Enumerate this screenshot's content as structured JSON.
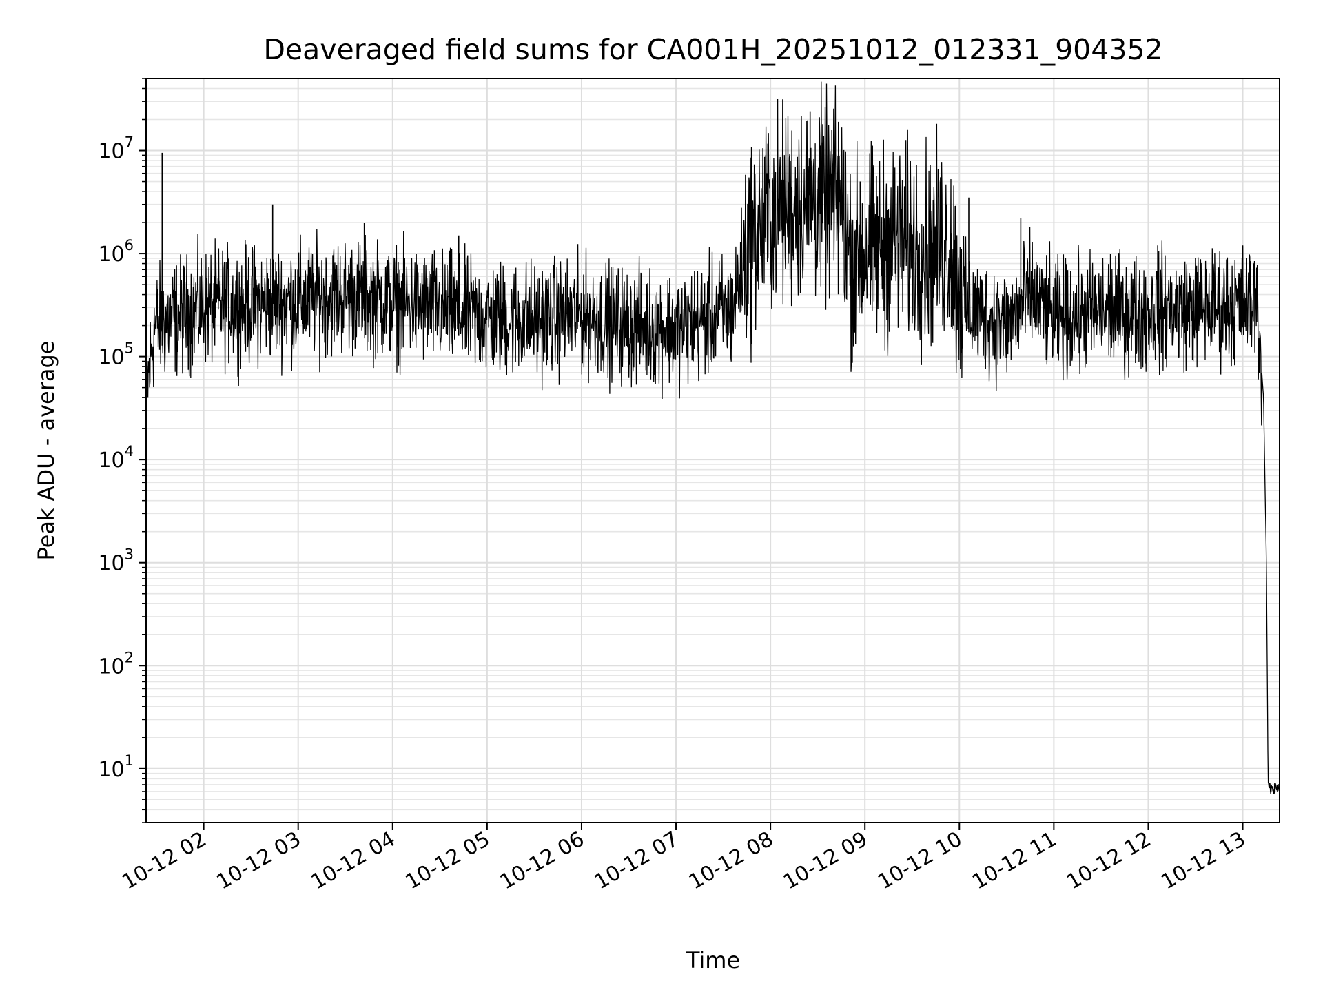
{
  "chart_data": {
    "type": "line",
    "title": "Deaveraged field sums for CA001H_20251012_012331_904352",
    "xlabel": "Time",
    "ylabel": "Peak ADU - average",
    "yscale": "log",
    "ylim": [
      3,
      50000000
    ],
    "xlim_hours": [
      1.39,
      13.39
    ],
    "grid": true,
    "x_ticks": [
      {
        "hour": 2,
        "label": "10-12 02"
      },
      {
        "hour": 3,
        "label": "10-12 03"
      },
      {
        "hour": 4,
        "label": "10-12 04"
      },
      {
        "hour": 5,
        "label": "10-12 05"
      },
      {
        "hour": 6,
        "label": "10-12 06"
      },
      {
        "hour": 7,
        "label": "10-12 07"
      },
      {
        "hour": 8,
        "label": "10-12 08"
      },
      {
        "hour": 9,
        "label": "10-12 09"
      },
      {
        "hour": 10,
        "label": "10-12 10"
      },
      {
        "hour": 11,
        "label": "10-12 11"
      },
      {
        "hour": 12,
        "label": "10-12 12"
      },
      {
        "hour": 13,
        "label": "10-12 13"
      }
    ],
    "y_ticks": [
      {
        "value": 10,
        "base": "10",
        "exp": "1"
      },
      {
        "value": 100,
        "base": "10",
        "exp": "2"
      },
      {
        "value": 1000,
        "base": "10",
        "exp": "3"
      },
      {
        "value": 10000,
        "base": "10",
        "exp": "4"
      },
      {
        "value": 100000,
        "base": "10",
        "exp": "5"
      },
      {
        "value": 1000000,
        "base": "10",
        "exp": "6"
      },
      {
        "value": 10000000,
        "base": "10",
        "exp": "7"
      }
    ],
    "series": [
      {
        "name": "deaveraged field sum",
        "color": "#000000",
        "baseline_profile": [
          {
            "hour": 1.39,
            "value": 40000
          },
          {
            "hour": 1.48,
            "value": 200000
          },
          {
            "hour": 2.0,
            "value": 300000
          },
          {
            "hour": 2.5,
            "value": 320000
          },
          {
            "hour": 3.0,
            "value": 340000
          },
          {
            "hour": 3.5,
            "value": 400000
          },
          {
            "hour": 4.0,
            "value": 330000
          },
          {
            "hour": 4.5,
            "value": 290000
          },
          {
            "hour": 5.0,
            "value": 230000
          },
          {
            "hour": 5.5,
            "value": 230000
          },
          {
            "hour": 6.0,
            "value": 250000
          },
          {
            "hour": 6.5,
            "value": 200000
          },
          {
            "hour": 7.0,
            "value": 190000
          },
          {
            "hour": 7.6,
            "value": 280000
          },
          {
            "hour": 7.75,
            "value": 1200000
          },
          {
            "hour": 8.0,
            "value": 2500000
          },
          {
            "hour": 8.4,
            "value": 3500000
          },
          {
            "hour": 8.75,
            "value": 3000000
          },
          {
            "hour": 8.85,
            "value": 900000
          },
          {
            "hour": 9.3,
            "value": 1300000
          },
          {
            "hour": 9.7,
            "value": 1100000
          },
          {
            "hour": 9.9,
            "value": 1200000
          },
          {
            "hour": 10.05,
            "value": 300000
          },
          {
            "hour": 10.5,
            "value": 200000
          },
          {
            "hour": 10.75,
            "value": 400000
          },
          {
            "hour": 11.0,
            "value": 230000
          },
          {
            "hour": 11.5,
            "value": 270000
          },
          {
            "hour": 12.0,
            "value": 270000
          },
          {
            "hour": 12.5,
            "value": 300000
          },
          {
            "hour": 13.0,
            "value": 320000
          },
          {
            "hour": 13.15,
            "value": 350000
          },
          {
            "hour": 13.22,
            "value": 40000
          },
          {
            "hour": 13.25,
            "value": 1000
          },
          {
            "hour": 13.27,
            "value": 6.5
          },
          {
            "hour": 13.39,
            "value": 6.5
          }
        ],
        "spikes": [
          {
            "hour": 1.56,
            "value": 9500000
          },
          {
            "hour": 2.73,
            "value": 3000000
          },
          {
            "hour": 3.7,
            "value": 2000000
          },
          {
            "hour": 4.7,
            "value": 1500000
          },
          {
            "hour": 7.8,
            "value": 3500000
          },
          {
            "hour": 7.95,
            "value": 9000000
          },
          {
            "hour": 8.1,
            "value": 7000000
          },
          {
            "hour": 8.42,
            "value": 24000000
          },
          {
            "hour": 8.55,
            "value": 12000000
          },
          {
            "hour": 8.65,
            "value": 16000000
          },
          {
            "hour": 8.72,
            "value": 19000000
          },
          {
            "hour": 8.95,
            "value": 5000000
          },
          {
            "hour": 9.4,
            "value": 4000000
          },
          {
            "hour": 9.8,
            "value": 5500000
          },
          {
            "hour": 10.1,
            "value": 3500000
          },
          {
            "hour": 10.65,
            "value": 2200000
          },
          {
            "hour": 11.6,
            "value": 1000000
          },
          {
            "hour": 12.1,
            "value": 1200000
          },
          {
            "hour": 12.5,
            "value": 900000
          },
          {
            "hour": 13.0,
            "value": 1200000
          }
        ]
      }
    ]
  }
}
